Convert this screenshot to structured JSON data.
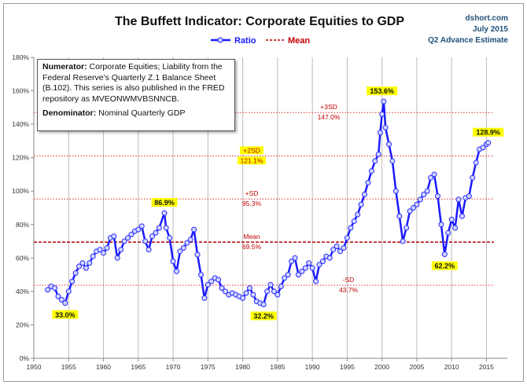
{
  "chart_data": {
    "type": "line",
    "title": "The Buffett Indicator: Corporate Equities to GDP",
    "source_lines": [
      "dshort.com",
      "July 2015",
      "Q2 Advance Estimate"
    ],
    "legend": {
      "placement": "top-center",
      "entries": [
        {
          "name": "Ratio",
          "color": "#1a1aff",
          "style": "line-with-circles"
        },
        {
          "name": "Mean",
          "color": "#c00000",
          "style": "dashed"
        }
      ]
    },
    "xlim": [
      1950,
      2018
    ],
    "ylim": [
      0,
      180
    ],
    "x_ticks": [
      "1950",
      "1955",
      "1960",
      "1965",
      "1970",
      "1975",
      "1980",
      "1985",
      "1990",
      "1995",
      "2000",
      "2005",
      "2010",
      "2015"
    ],
    "y_ticks": [
      "0%",
      "20%",
      "40%",
      "60%",
      "80%",
      "100%",
      "120%",
      "140%",
      "160%",
      "180%"
    ],
    "grid": {
      "vertical": true,
      "horizontal": false
    },
    "series": [
      {
        "name": "Ratio",
        "x": [
          1952,
          1952.5,
          1953,
          1953.5,
          1954,
          1954.5,
          1955,
          1955.5,
          1956,
          1956.5,
          1957,
          1957.5,
          1958,
          1958.5,
          1959,
          1959.5,
          1960,
          1960.5,
          1961,
          1961.5,
          1962,
          1962.5,
          1963,
          1963.5,
          1964,
          1964.5,
          1965,
          1965.5,
          1966,
          1966.5,
          1967,
          1967.5,
          1968,
          1968.75,
          1969,
          1969.5,
          1970,
          1970.5,
          1971,
          1971.5,
          1972,
          1972.5,
          1973,
          1973.5,
          1974,
          1974.5,
          1975,
          1975.5,
          1976,
          1976.5,
          1977,
          1977.5,
          1978,
          1978.5,
          1979,
          1979.5,
          1980,
          1980.5,
          1981,
          1981.5,
          1982,
          1982.5,
          1983,
          1983.5,
          1984,
          1984.5,
          1985,
          1985.5,
          1986,
          1986.5,
          1987,
          1987.5,
          1988,
          1988.5,
          1989,
          1989.5,
          1990,
          1990.5,
          1991,
          1991.5,
          1992,
          1992.5,
          1993,
          1993.5,
          1994,
          1994.5,
          1995,
          1995.5,
          1996,
          1996.5,
          1997,
          1997.5,
          1998,
          1998.5,
          1999,
          1999.5,
          1999.75,
          2000,
          2000.25,
          2000.5,
          2001,
          2001.5,
          2002,
          2002.5,
          2003,
          2003.5,
          2004,
          2004.5,
          2005,
          2005.5,
          2006,
          2006.5,
          2007,
          2007.5,
          2008,
          2008.5,
          2009,
          2009.5,
          2010,
          2010.5,
          2011,
          2011.5,
          2012,
          2012.5,
          2013,
          2013.5,
          2014,
          2014.5,
          2015,
          2015.25
        ],
        "values": [
          41,
          43,
          42,
          37,
          35,
          33,
          40,
          46,
          51,
          55,
          57,
          54,
          57,
          61,
          64,
          65,
          63,
          66,
          72,
          73,
          60,
          65,
          70,
          72,
          74,
          76,
          77,
          79,
          70,
          65,
          73,
          75,
          78,
          86.9,
          78,
          72,
          58,
          52,
          64,
          66,
          69,
          71,
          77,
          62,
          50,
          36,
          44,
          46,
          48,
          47,
          42,
          40,
          38,
          39,
          38,
          37,
          36,
          39,
          42,
          38,
          34,
          33,
          32.2,
          40,
          44,
          40,
          38,
          43,
          48,
          50,
          58,
          60,
          50,
          52,
          54,
          57,
          54,
          46,
          56,
          58,
          61,
          60,
          65,
          67,
          64,
          66,
          72,
          78,
          82,
          86,
          92,
          98,
          105,
          112,
          118,
          122,
          135,
          146,
          153.6,
          138,
          128,
          118,
          100,
          85,
          70,
          78,
          88,
          90,
          92,
          95,
          98,
          100,
          108,
          110,
          97,
          80,
          62.2,
          75,
          83,
          78,
          95,
          85,
          96,
          97,
          108,
          117,
          125,
          126,
          128,
          128.9
        ]
      }
    ],
    "reference_lines": [
      {
        "name": "+3SD",
        "value": 147.0,
        "label": "+3SD",
        "value_label": "147.0%",
        "style": "dotted",
        "highlight": false
      },
      {
        "name": "+2SD",
        "value": 121.1,
        "label": "+2SD",
        "value_label": "121.1%",
        "style": "dotted",
        "highlight": true
      },
      {
        "name": "+SD",
        "value": 95.3,
        "label": "+SD",
        "value_label": "95.3%",
        "style": "dotted",
        "highlight": false
      },
      {
        "name": "Mean",
        "value": 69.5,
        "label": "Mean",
        "value_label": "69.5%",
        "style": "dashed",
        "highlight": false
      },
      {
        "name": "-SD",
        "value": 43.7,
        "label": "-SD",
        "value_label": "43.7%",
        "style": "dotted",
        "highlight": false
      }
    ],
    "data_labels": [
      {
        "x": 1954.5,
        "y": 33.0,
        "text": "33.0%",
        "pos": "below"
      },
      {
        "x": 1968.75,
        "y": 86.9,
        "text": "86.9%",
        "pos": "above"
      },
      {
        "x": 1983,
        "y": 32.2,
        "text": "32.2%",
        "pos": "below"
      },
      {
        "x": 2000,
        "y": 153.6,
        "text": "153.6%",
        "pos": "above"
      },
      {
        "x": 2009,
        "y": 62.2,
        "text": "62.2%",
        "pos": "below"
      },
      {
        "x": 2015.25,
        "y": 128.9,
        "text": "128.9%",
        "pos": "above"
      }
    ],
    "note": {
      "numerator_label": "Numerator:",
      "numerator_text": "Corporate Equities; Liability from the Federal Reserve's Quarterly Z.1 Balance Sheet (B.102). This series is also published in the FRED repository as MVEONWMVBSNNCB.",
      "denominator_label": "Denominator:",
      "denominator_text": "Nominal Quarterly GDP"
    }
  }
}
